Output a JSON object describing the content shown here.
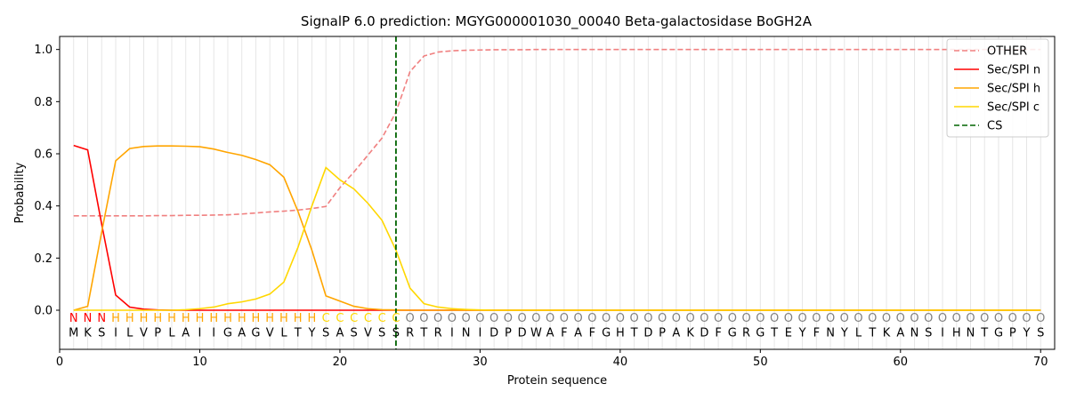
{
  "chart_data": {
    "type": "line",
    "title": "SignalP 6.0 prediction: MGYG000001030_00040 Beta-galactosidase BoGH2A",
    "xlabel": "Protein sequence",
    "ylabel": "Probability",
    "xlim": [
      0,
      71
    ],
    "ylim": [
      -0.15,
      1.05
    ],
    "x_ticks": [
      0,
      10,
      20,
      30,
      40,
      50,
      60,
      70
    ],
    "y_ticks": [
      0.0,
      0.2,
      0.4,
      0.6,
      0.8,
      1.0
    ],
    "y_tick_labels": [
      "0.0",
      "0.2",
      "0.4",
      "0.6",
      "0.8",
      "1.0"
    ],
    "grid": "vertical lines at each residue",
    "legend_position": "top-right",
    "sequence": [
      "M",
      "K",
      "S",
      "I",
      "L",
      "V",
      "P",
      "L",
      "A",
      "I",
      "I",
      "G",
      "A",
      "G",
      "V",
      "L",
      "T",
      "Y",
      "S",
      "A",
      "S",
      "V",
      "S",
      "S",
      "R",
      "T",
      "R",
      "I",
      "N",
      "I",
      "D",
      "P",
      "D",
      "W",
      "A",
      "F",
      "A",
      "F",
      "G",
      "H",
      "T",
      "D",
      "P",
      "A",
      "K",
      "D",
      "F",
      "G",
      "R",
      "G",
      "T",
      "E",
      "Y",
      "F",
      "N",
      "Y",
      "L",
      "T",
      "K",
      "A",
      "N",
      "S",
      "I",
      "H",
      "N",
      "T",
      "G",
      "P",
      "Y",
      "S"
    ],
    "labels": [
      "N",
      "N",
      "N",
      "H",
      "H",
      "H",
      "H",
      "H",
      "H",
      "H",
      "H",
      "H",
      "H",
      "H",
      "H",
      "H",
      "H",
      "H",
      "C",
      "C",
      "C",
      "C",
      "C",
      "C",
      "O",
      "O",
      "O",
      "O",
      "O",
      "O",
      "O",
      "O",
      "O",
      "O",
      "O",
      "O",
      "O",
      "O",
      "O",
      "O",
      "O",
      "O",
      "O",
      "O",
      "O",
      "O",
      "O",
      "O",
      "O",
      "O",
      "O",
      "O",
      "O",
      "O",
      "O",
      "O",
      "O",
      "O",
      "O",
      "O",
      "O",
      "O",
      "O",
      "O",
      "O",
      "O",
      "O",
      "O",
      "O",
      "O"
    ],
    "label_colors": {
      "N": "#ff0000",
      "H": "#ffa500",
      "C": "#ffd700",
      "O": "#808080"
    },
    "series": [
      {
        "name": "OTHER",
        "color": "#f08080",
        "dash": "dashed",
        "values": [
          0.362,
          0.362,
          0.362,
          0.362,
          0.362,
          0.362,
          0.363,
          0.363,
          0.364,
          0.364,
          0.365,
          0.366,
          0.369,
          0.373,
          0.377,
          0.38,
          0.384,
          0.39,
          0.398,
          0.47,
          0.53,
          0.595,
          0.66,
          0.76,
          0.915,
          0.975,
          0.99,
          0.995,
          0.997,
          0.998,
          0.999,
          0.999,
          0.999,
          1.0,
          1.0,
          1.0,
          1.0,
          1.0,
          1.0,
          1.0,
          1.0,
          1.0,
          1.0,
          1.0,
          1.0,
          1.0,
          1.0,
          1.0,
          1.0,
          1.0,
          1.0,
          1.0,
          1.0,
          1.0,
          1.0,
          1.0,
          1.0,
          1.0,
          1.0,
          1.0,
          1.0,
          1.0,
          1.0,
          1.0,
          1.0,
          1.0,
          1.0,
          1.0,
          1.0,
          1.0
        ]
      },
      {
        "name": "Sec/SPI n",
        "color": "#ff0000",
        "dash": "solid",
        "values": [
          0.632,
          0.615,
          0.33,
          0.058,
          0.012,
          0.004,
          0.001,
          0,
          0,
          0,
          0,
          0,
          0,
          0,
          0,
          0,
          0,
          0,
          0,
          0,
          0,
          0,
          0,
          0,
          0,
          0,
          0,
          0,
          0,
          0,
          0,
          0,
          0,
          0,
          0,
          0,
          0,
          0,
          0,
          0,
          0,
          0,
          0,
          0,
          0,
          0,
          0,
          0,
          0,
          0,
          0,
          0,
          0,
          0,
          0,
          0,
          0,
          0,
          0,
          0,
          0,
          0,
          0,
          0,
          0,
          0,
          0,
          0,
          0,
          0
        ]
      },
      {
        "name": "Sec/SPI h",
        "color": "#ffa500",
        "dash": "solid",
        "values": [
          0.0,
          0.015,
          0.3,
          0.573,
          0.62,
          0.628,
          0.63,
          0.63,
          0.629,
          0.627,
          0.618,
          0.605,
          0.594,
          0.578,
          0.558,
          0.51,
          0.38,
          0.23,
          0.055,
          0.035,
          0.015,
          0.006,
          0.002,
          0.001,
          0,
          0,
          0,
          0,
          0,
          0,
          0,
          0,
          0,
          0,
          0,
          0,
          0,
          0,
          0,
          0,
          0,
          0,
          0,
          0,
          0,
          0,
          0,
          0,
          0,
          0,
          0,
          0,
          0,
          0,
          0,
          0,
          0,
          0,
          0,
          0,
          0,
          0,
          0,
          0,
          0,
          0,
          0,
          0,
          0,
          0
        ]
      },
      {
        "name": "Sec/SPI c",
        "color": "#ffd700",
        "dash": "solid",
        "values": [
          0.0,
          0.0,
          0.0,
          0.0,
          0.0,
          0.0,
          0.0,
          0.0,
          0.002,
          0.006,
          0.012,
          0.025,
          0.032,
          0.043,
          0.062,
          0.108,
          0.24,
          0.4,
          0.547,
          0.5,
          0.465,
          0.41,
          0.345,
          0.23,
          0.085,
          0.025,
          0.012,
          0.006,
          0.003,
          0.001,
          0,
          0,
          0,
          0,
          0,
          0,
          0,
          0,
          0,
          0,
          0,
          0,
          0,
          0,
          0,
          0,
          0,
          0,
          0,
          0,
          0,
          0,
          0,
          0,
          0,
          0,
          0,
          0,
          0,
          0,
          0,
          0,
          0,
          0,
          0,
          0,
          0,
          0,
          0,
          0
        ]
      }
    ],
    "cs_line": {
      "name": "CS",
      "x": 24,
      "color": "#006400",
      "dash": "dashed"
    }
  }
}
